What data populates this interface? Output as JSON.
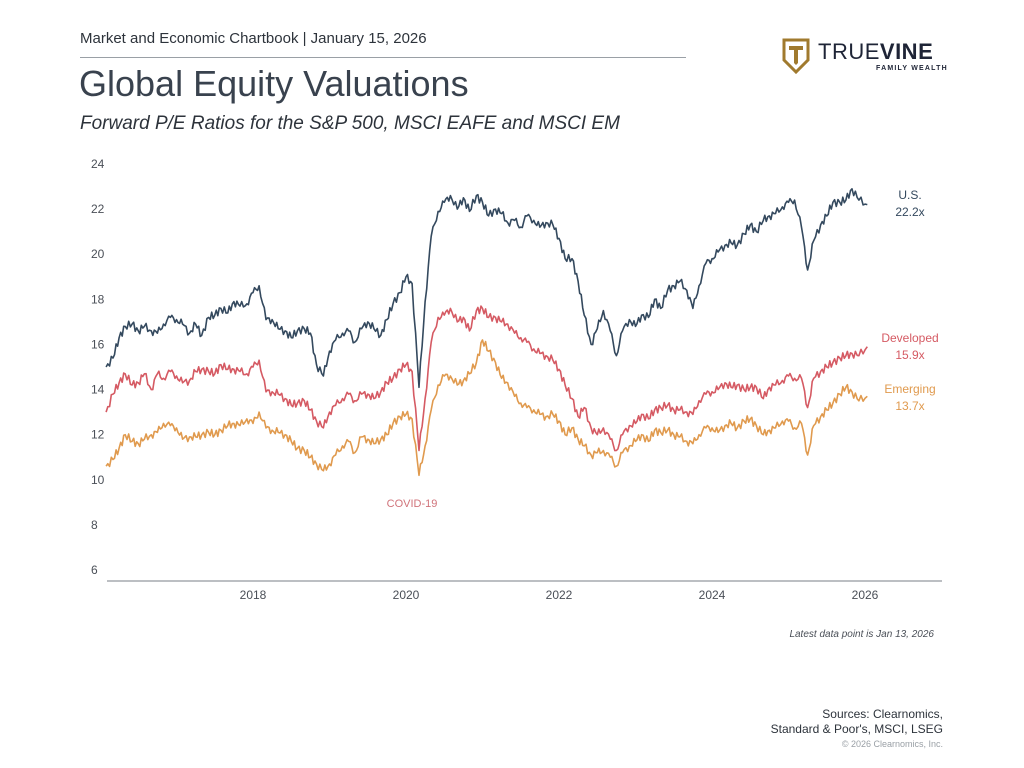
{
  "header": {
    "chartbook": "Market and Economic Chartbook | January 15, 2026",
    "title": "Global Equity Valuations",
    "subtitle": "Forward P/E Ratios for the S&P 500, MSCI EAFE and MSCI EM"
  },
  "logo": {
    "word_thin": "TRUE",
    "word_bold": "VINE",
    "tagline": "FAMILY WEALTH",
    "icon": "shield-t-icon",
    "color_gold": "#a07a2e",
    "color_navy": "#1e2436"
  },
  "footer": {
    "latest": "Latest data point is Jan 13, 2026",
    "sources_line1": "Sources: Clearnomics,",
    "sources_line2": "Standard & Poor's, MSCI, LSEG",
    "copyright": "© 2026 Clearnomics, Inc."
  },
  "chart_data": {
    "type": "line",
    "title": "Global Equity Valuations",
    "subtitle": "Forward P/E Ratios for the S&P 500, MSCI EAFE and MSCI EM",
    "xlabel": "",
    "ylabel": "",
    "xlim": [
      2016.05,
      2026.95
    ],
    "ylim": [
      6,
      24
    ],
    "x_ticks": [
      "2018",
      "2020",
      "2022",
      "2024",
      "2026"
    ],
    "x_tick_values": [
      2018,
      2020,
      2022,
      2024,
      2026
    ],
    "y_ticks": [
      "6",
      "8",
      "10",
      "12",
      "14",
      "16",
      "18",
      "20",
      "22",
      "24"
    ],
    "y_tick_values": [
      6,
      8,
      10,
      12,
      14,
      16,
      18,
      20,
      22,
      24
    ],
    "grid": false,
    "annotations": [
      {
        "text": "COVID-19",
        "x": 2020.1,
        "y": 9.1,
        "color": "#d0737a"
      }
    ],
    "x": [
      2016.08,
      2016.17,
      2016.25,
      2016.33,
      2016.42,
      2016.5,
      2016.58,
      2016.67,
      2016.75,
      2016.83,
      2016.92,
      2017.0,
      2017.08,
      2017.17,
      2017.25,
      2017.33,
      2017.42,
      2017.5,
      2017.58,
      2017.67,
      2017.75,
      2017.83,
      2017.92,
      2018.0,
      2018.08,
      2018.17,
      2018.25,
      2018.33,
      2018.42,
      2018.5,
      2018.58,
      2018.67,
      2018.75,
      2018.83,
      2018.92,
      2019.0,
      2019.08,
      2019.17,
      2019.25,
      2019.33,
      2019.42,
      2019.5,
      2019.58,
      2019.67,
      2019.75,
      2019.83,
      2019.92,
      2020.0,
      2020.08,
      2020.17,
      2020.25,
      2020.33,
      2020.42,
      2020.5,
      2020.58,
      2020.67,
      2020.75,
      2020.83,
      2020.92,
      2021.0,
      2021.08,
      2021.17,
      2021.25,
      2021.33,
      2021.42,
      2021.5,
      2021.58,
      2021.67,
      2021.75,
      2021.83,
      2021.92,
      2022.0,
      2022.08,
      2022.17,
      2022.25,
      2022.33,
      2022.42,
      2022.5,
      2022.58,
      2022.67,
      2022.75,
      2022.83,
      2022.92,
      2023.0,
      2023.08,
      2023.17,
      2023.25,
      2023.33,
      2023.42,
      2023.5,
      2023.58,
      2023.67,
      2023.75,
      2023.83,
      2023.92,
      2024.0,
      2024.08,
      2024.17,
      2024.25,
      2024.33,
      2024.42,
      2024.5,
      2024.58,
      2024.67,
      2024.75,
      2024.83,
      2024.92,
      2025.0,
      2025.08,
      2025.17,
      2025.25,
      2025.33,
      2025.42,
      2025.5,
      2025.58,
      2025.67,
      2025.75,
      2025.83,
      2025.92,
      2026.03
    ],
    "series": [
      {
        "name": "U.S.",
        "end_label": "U.S.",
        "end_value_label": "22.2x",
        "color": "#34495e",
        "values": [
          15.0,
          15.4,
          16.3,
          16.8,
          16.9,
          16.6,
          16.8,
          16.6,
          16.5,
          16.9,
          17.2,
          17.1,
          16.9,
          16.5,
          16.9,
          16.4,
          17.2,
          17.3,
          17.6,
          17.4,
          17.9,
          17.7,
          17.8,
          18.3,
          18.6,
          17.1,
          17.1,
          16.7,
          16.6,
          16.3,
          16.6,
          16.7,
          16.5,
          15.1,
          14.6,
          15.7,
          16.2,
          16.5,
          16.6,
          16.1,
          16.7,
          17.0,
          16.7,
          16.4,
          17.1,
          17.8,
          18.3,
          19.0,
          18.7,
          14.1,
          17.9,
          20.8,
          21.9,
          22.3,
          22.6,
          22.0,
          22.5,
          21.9,
          22.6,
          22.3,
          21.7,
          22.0,
          21.8,
          21.4,
          21.5,
          21.2,
          21.7,
          21.5,
          21.2,
          21.4,
          21.3,
          20.7,
          19.8,
          19.8,
          18.8,
          17.3,
          16.0,
          16.7,
          17.5,
          16.6,
          15.5,
          16.6,
          17.1,
          16.8,
          17.3,
          17.2,
          18.0,
          17.6,
          18.4,
          18.6,
          18.8,
          18.4,
          17.6,
          18.6,
          19.6,
          19.8,
          20.1,
          20.4,
          20.5,
          20.4,
          20.9,
          21.3,
          21.0,
          21.5,
          21.7,
          21.8,
          22.1,
          22.3,
          22.4,
          21.2,
          19.3,
          20.6,
          21.3,
          21.7,
          22.3,
          22.3,
          22.4,
          22.9,
          22.4,
          22.2
        ]
      },
      {
        "name": "Developed",
        "end_label": "Developed",
        "end_value_label": "15.9x",
        "color": "#d55a63",
        "values": [
          13.0,
          13.8,
          14.3,
          14.7,
          14.2,
          14.3,
          14.7,
          14.0,
          14.7,
          14.5,
          14.8,
          14.6,
          14.3,
          14.4,
          14.8,
          14.9,
          14.8,
          14.7,
          15.1,
          14.9,
          14.9,
          14.8,
          14.7,
          15.0,
          15.3,
          13.9,
          13.9,
          13.8,
          13.6,
          13.3,
          13.4,
          13.5,
          13.1,
          12.6,
          12.3,
          13.0,
          13.3,
          13.6,
          13.8,
          13.5,
          13.8,
          13.8,
          13.6,
          13.9,
          14.3,
          14.5,
          14.9,
          15.1,
          14.8,
          11.3,
          13.6,
          16.1,
          17.2,
          17.3,
          17.6,
          17.0,
          17.2,
          16.6,
          17.5,
          17.6,
          17.2,
          17.2,
          17.0,
          16.9,
          16.5,
          16.3,
          16.1,
          15.8,
          15.6,
          15.5,
          15.3,
          14.9,
          14.2,
          13.6,
          12.8,
          13.2,
          12.3,
          12.0,
          12.3,
          11.8,
          11.3,
          12.0,
          12.4,
          12.5,
          12.9,
          12.7,
          13.1,
          13.2,
          13.3,
          13.1,
          13.1,
          13.0,
          12.9,
          13.5,
          13.8,
          13.9,
          14.0,
          14.3,
          14.1,
          14.2,
          14.0,
          14.1,
          14.1,
          13.6,
          14.1,
          14.2,
          14.4,
          14.6,
          14.5,
          14.5,
          13.2,
          14.5,
          14.8,
          15.0,
          15.2,
          15.4,
          15.5,
          15.6,
          15.5,
          15.9
        ]
      },
      {
        "name": "Emerging",
        "end_label": "Emerging",
        "end_value_label": "13.7x",
        "color": "#e09a4e",
        "values": [
          10.6,
          10.9,
          11.4,
          12.0,
          11.7,
          11.6,
          11.8,
          12.0,
          12.1,
          12.5,
          12.4,
          12.3,
          11.8,
          11.9,
          11.9,
          12.0,
          12.1,
          12.0,
          12.2,
          12.4,
          12.5,
          12.4,
          12.7,
          12.5,
          13.0,
          12.3,
          12.2,
          12.1,
          12.0,
          11.7,
          11.4,
          11.3,
          11.0,
          10.7,
          10.4,
          10.7,
          11.1,
          11.5,
          11.7,
          11.2,
          11.9,
          11.8,
          11.6,
          11.8,
          12.0,
          12.5,
          12.8,
          12.9,
          12.7,
          10.2,
          11.5,
          13.1,
          14.2,
          14.6,
          14.6,
          14.2,
          14.4,
          14.7,
          15.2,
          16.2,
          15.7,
          15.2,
          14.5,
          14.3,
          13.7,
          13.4,
          13.2,
          13.1,
          12.9,
          12.8,
          12.9,
          12.6,
          12.0,
          12.3,
          11.8,
          11.5,
          11.1,
          11.2,
          11.3,
          11.0,
          10.6,
          11.2,
          11.5,
          11.7,
          12.0,
          11.7,
          12.2,
          12.1,
          12.2,
          12.0,
          11.9,
          11.7,
          11.6,
          12.0,
          12.3,
          12.3,
          12.1,
          12.4,
          12.5,
          12.3,
          12.6,
          12.7,
          12.4,
          12.0,
          12.2,
          12.3,
          12.6,
          12.6,
          12.3,
          12.5,
          11.1,
          12.4,
          12.8,
          13.1,
          13.4,
          13.8,
          14.1,
          13.9,
          13.5,
          13.7
        ]
      }
    ]
  }
}
